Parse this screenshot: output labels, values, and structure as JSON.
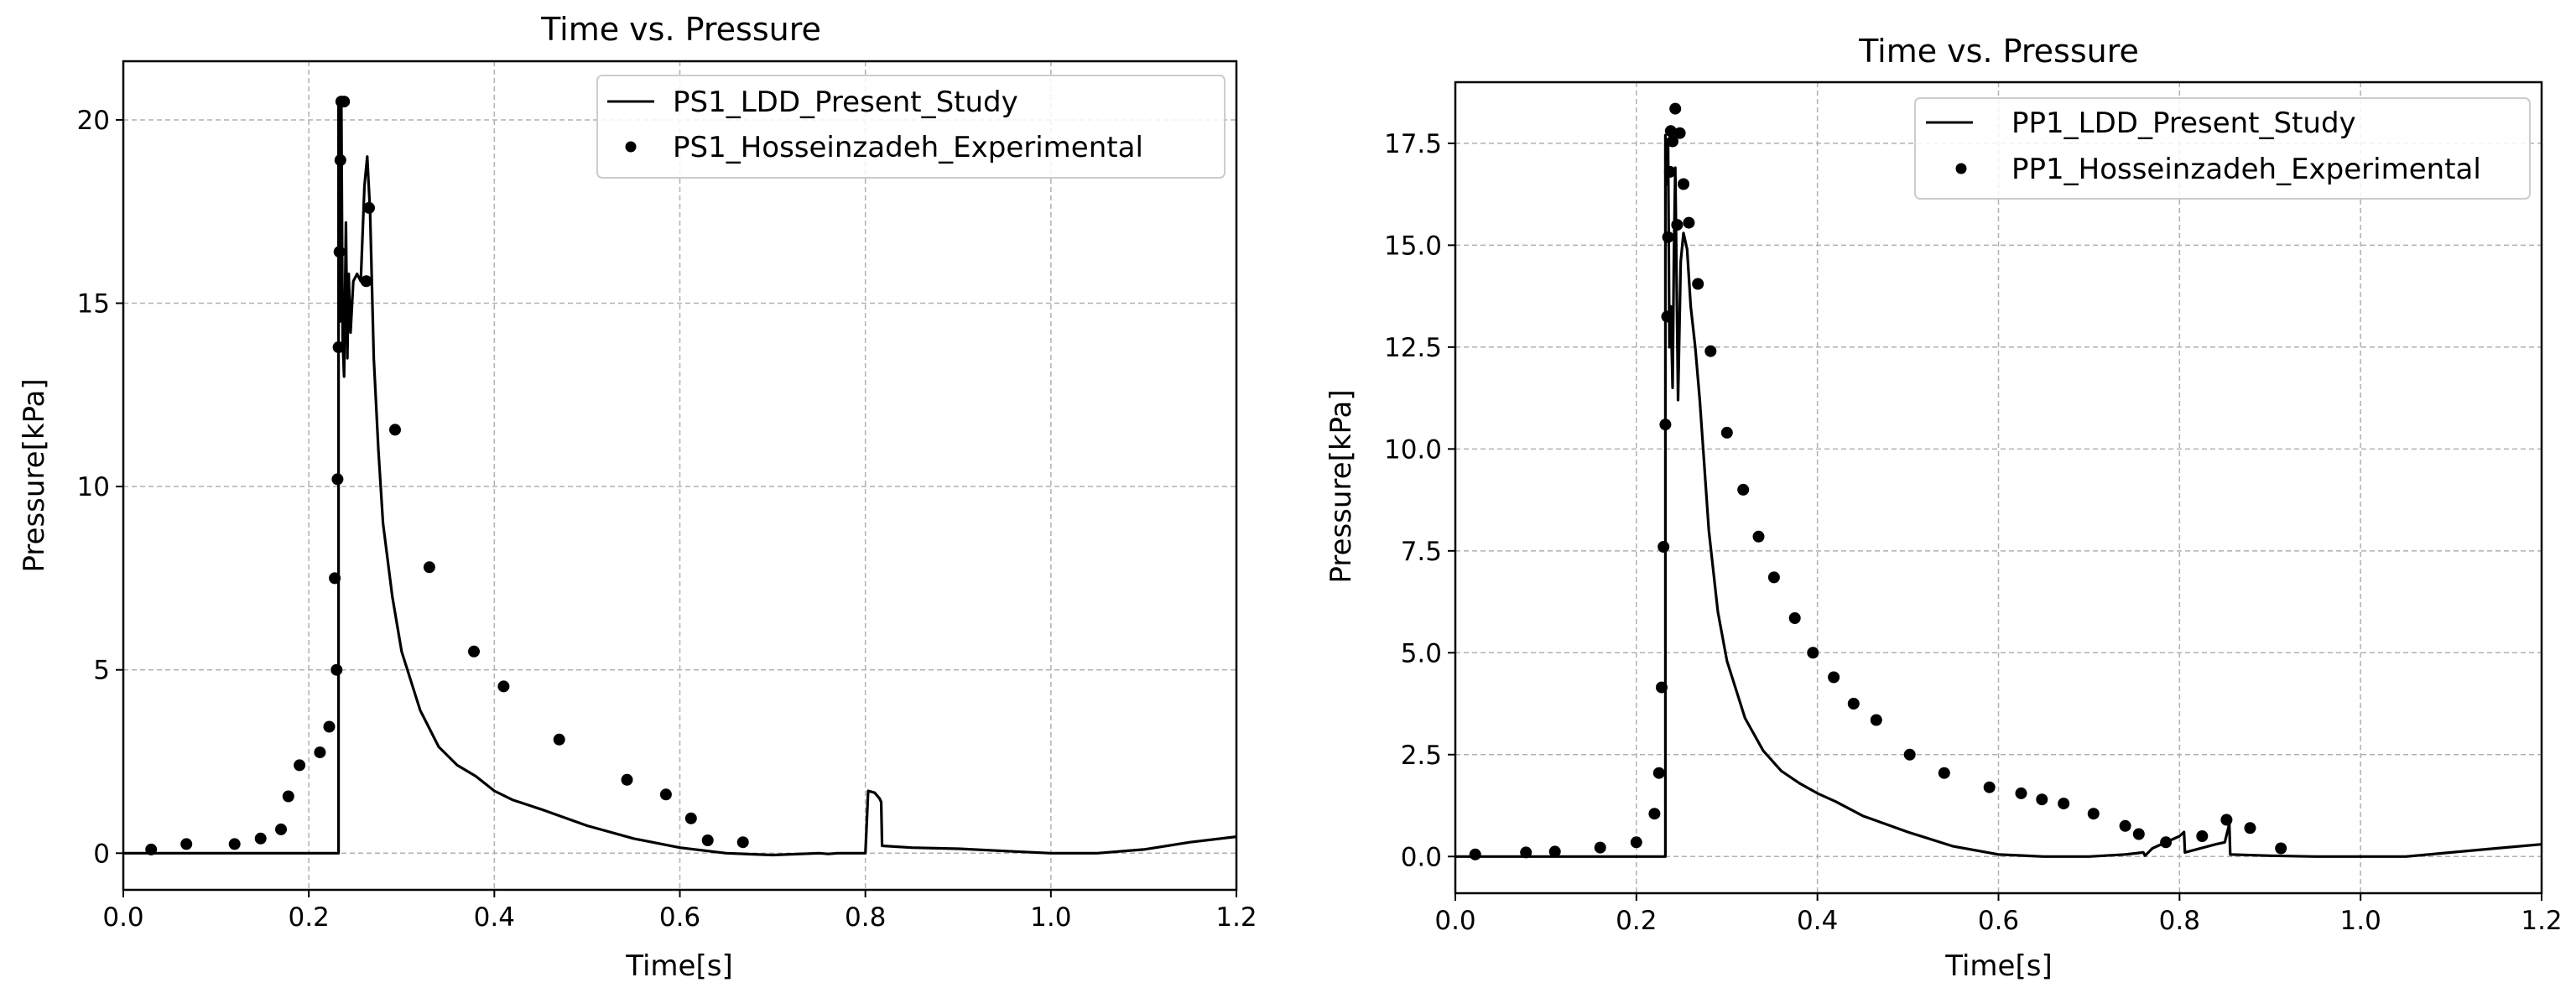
{
  "chart_data": [
    {
      "type": "line",
      "title": "Time vs. Pressure",
      "xlabel": "Time[s]",
      "ylabel": "Pressure[kPa]",
      "xlim": [
        0.0,
        1.2
      ],
      "ylim": [
        -1.0,
        21.6
      ],
      "xticks": [
        0.0,
        0.2,
        0.4,
        0.6,
        0.8,
        1.0,
        1.2
      ],
      "xtick_labels": [
        "0.0",
        "0.2",
        "0.4",
        "0.6",
        "0.8",
        "1.0",
        "1.2"
      ],
      "yticks": [
        0,
        5,
        10,
        15,
        20
      ],
      "ytick_labels": [
        "0",
        "5",
        "10",
        "15",
        "20"
      ],
      "grid": true,
      "legend_position": "top-right",
      "series": [
        {
          "name": "PS1_LDD_Present_Study",
          "style": "line",
          "color": "#000000",
          "x": [
            0.0,
            0.05,
            0.1,
            0.15,
            0.2,
            0.232,
            0.232,
            0.2335,
            0.235,
            0.2365,
            0.238,
            0.24,
            0.2415,
            0.243,
            0.245,
            0.248,
            0.252,
            0.256,
            0.26,
            0.263,
            0.266,
            0.27,
            0.275,
            0.28,
            0.29,
            0.3,
            0.32,
            0.34,
            0.36,
            0.38,
            0.4,
            0.42,
            0.45,
            0.5,
            0.55,
            0.6,
            0.65,
            0.7,
            0.75,
            0.76,
            0.77,
            0.8,
            0.803,
            0.81,
            0.815,
            0.817,
            0.818,
            0.85,
            0.9,
            0.95,
            1.0,
            1.05,
            1.1,
            1.15,
            1.2
          ],
          "y": [
            0,
            0,
            0,
            0,
            0,
            0,
            20.5,
            14.5,
            20.6,
            14.0,
            13.0,
            17.2,
            13.5,
            15.8,
            14.2,
            15.6,
            15.8,
            15.6,
            18.2,
            19.0,
            17.5,
            13.5,
            11.0,
            9.0,
            7.0,
            5.5,
            3.9,
            2.9,
            2.4,
            2.1,
            1.7,
            1.45,
            1.2,
            0.75,
            0.4,
            0.15,
            0.0,
            -0.05,
            0.0,
            -0.02,
            0.0,
            0.0,
            1.7,
            1.65,
            1.5,
            1.4,
            0.2,
            0.15,
            0.12,
            0.06,
            0.0,
            0.0,
            0.1,
            0.3,
            0.45
          ]
        },
        {
          "name": "PS1_Hosseinzadeh_Experimental",
          "style": "markers",
          "color": "#000000",
          "x": [
            0.03,
            0.068,
            0.12,
            0.148,
            0.17,
            0.178,
            0.19,
            0.212,
            0.222,
            0.228,
            0.23,
            0.231,
            0.232,
            0.233,
            0.234,
            0.235,
            0.238,
            0.262,
            0.265,
            0.293,
            0.33,
            0.378,
            0.41,
            0.47,
            0.543,
            0.585,
            0.612,
            0.63,
            0.668
          ],
          "y": [
            0.1,
            0.25,
            0.25,
            0.4,
            0.65,
            1.55,
            2.4,
            2.75,
            3.45,
            7.5,
            5.0,
            10.2,
            13.8,
            16.4,
            18.9,
            20.5,
            20.5,
            15.6,
            17.6,
            11.55,
            7.8,
            5.5,
            4.55,
            3.1,
            2.0,
            1.6,
            0.95,
            0.35,
            0.3
          ]
        }
      ]
    },
    {
      "type": "line",
      "title": "Time vs. Pressure",
      "xlabel": "Time[s]",
      "ylabel": "Pressure[kPa]",
      "xlim": [
        0.0,
        1.2
      ],
      "ylim": [
        -0.9,
        19.0
      ],
      "xticks": [
        0.0,
        0.2,
        0.4,
        0.6,
        0.8,
        1.0,
        1.2
      ],
      "xtick_labels": [
        "0.0",
        "0.2",
        "0.4",
        "0.6",
        "0.8",
        "1.0",
        "1.2"
      ],
      "yticks": [
        0.0,
        2.5,
        5.0,
        7.5,
        10.0,
        12.5,
        15.0,
        17.5
      ],
      "ytick_labels": [
        "0.0",
        "2.5",
        "5.0",
        "7.5",
        "10.0",
        "12.5",
        "15.0",
        "17.5"
      ],
      "grid": true,
      "legend_position": "top-right",
      "series": [
        {
          "name": "PP1_LDD_Present_Study",
          "style": "line",
          "color": "#000000",
          "x": [
            0.0,
            0.05,
            0.1,
            0.15,
            0.2,
            0.232,
            0.232,
            0.2335,
            0.235,
            0.2365,
            0.238,
            0.24,
            0.2415,
            0.243,
            0.246,
            0.249,
            0.252,
            0.256,
            0.26,
            0.265,
            0.27,
            0.28,
            0.29,
            0.3,
            0.32,
            0.34,
            0.36,
            0.38,
            0.4,
            0.42,
            0.45,
            0.5,
            0.55,
            0.6,
            0.65,
            0.7,
            0.74,
            0.76,
            0.762,
            0.77,
            0.8,
            0.805,
            0.806,
            0.84,
            0.85,
            0.855,
            0.856,
            0.9,
            0.95,
            1.0,
            1.05,
            1.1,
            1.15,
            1.2
          ],
          "y": [
            0,
            0,
            0,
            0,
            0,
            0,
            17.7,
            16.5,
            17.6,
            12.5,
            13.5,
            11.5,
            14.8,
            16.9,
            11.2,
            14.6,
            15.3,
            14.9,
            13.5,
            12.5,
            11.2,
            8.0,
            6.0,
            4.8,
            3.4,
            2.6,
            2.1,
            1.8,
            1.55,
            1.35,
            1.0,
            0.6,
            0.25,
            0.05,
            0.0,
            0.0,
            0.05,
            0.1,
            0.02,
            0.2,
            0.5,
            0.6,
            0.1,
            0.3,
            0.35,
            0.8,
            0.05,
            0.02,
            0.0,
            0.0,
            0.0,
            0.1,
            0.2,
            0.3
          ]
        },
        {
          "name": "PP1_Hosseinzadeh_Experimental",
          "style": "markers",
          "color": "#000000",
          "x": [
            0.022,
            0.078,
            0.11,
            0.16,
            0.2,
            0.22,
            0.225,
            0.228,
            0.23,
            0.232,
            0.234,
            0.235,
            0.237,
            0.238,
            0.24,
            0.243,
            0.245,
            0.248,
            0.252,
            0.258,
            0.268,
            0.282,
            0.3,
            0.318,
            0.335,
            0.352,
            0.375,
            0.395,
            0.418,
            0.44,
            0.465,
            0.502,
            0.54,
            0.59,
            0.625,
            0.648,
            0.672,
            0.705,
            0.74,
            0.755,
            0.785,
            0.825,
            0.852,
            0.878,
            0.912
          ],
          "y": [
            0.05,
            0.1,
            0.12,
            0.22,
            0.35,
            1.05,
            2.05,
            4.15,
            7.6,
            10.6,
            13.25,
            15.2,
            16.8,
            17.8,
            17.55,
            18.35,
            15.5,
            17.75,
            16.5,
            15.55,
            14.05,
            12.4,
            10.4,
            9.0,
            7.85,
            6.85,
            5.85,
            5.0,
            4.4,
            3.75,
            3.35,
            2.5,
            2.05,
            1.7,
            1.55,
            1.4,
            1.3,
            1.05,
            0.75,
            0.55,
            0.35,
            0.5,
            0.9,
            0.7,
            0.2
          ]
        }
      ]
    }
  ]
}
